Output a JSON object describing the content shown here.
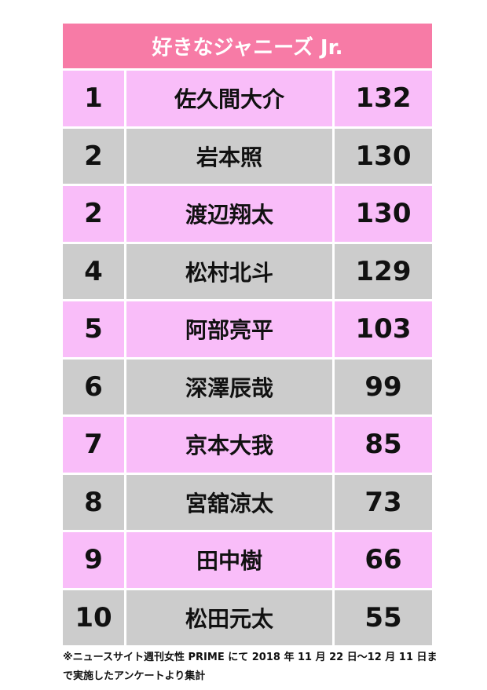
{
  "chart_data": {
    "type": "table",
    "title": "好きなジャニーズ Jr.",
    "rows": [
      {
        "rank": "1",
        "name": "佐久間大介",
        "value": 132
      },
      {
        "rank": "2",
        "name": "岩本照",
        "value": 130
      },
      {
        "rank": "2",
        "name": "渡辺翔太",
        "value": 130
      },
      {
        "rank": "4",
        "name": "松村北斗",
        "value": 129
      },
      {
        "rank": "5",
        "name": "阿部亮平",
        "value": 103
      },
      {
        "rank": "6",
        "name": "深澤辰哉",
        "value": 99
      },
      {
        "rank": "7",
        "name": "京本大我",
        "value": 85
      },
      {
        "rank": "8",
        "name": "宮舘涼太",
        "value": 73
      },
      {
        "rank": "9",
        "name": "田中樹",
        "value": 66
      },
      {
        "rank": "10",
        "name": "松田元太",
        "value": 55
      }
    ],
    "colors": {
      "header": "#f77ba6",
      "row_odd": "#f9bdf9",
      "row_even": "#cccccc"
    }
  },
  "footnote": "※ニュースサイト週刊女性 PRIME にて 2018 年 11 月 22 日〜12 月 11 日まで実施したアンケートより集計"
}
